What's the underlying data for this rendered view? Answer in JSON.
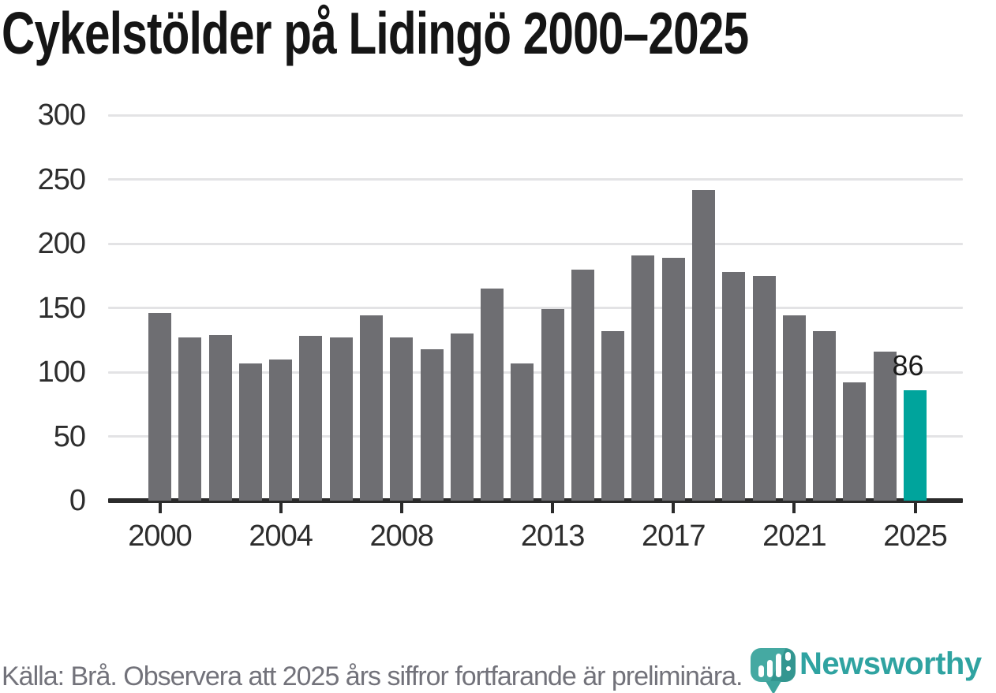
{
  "title": "Cykelstölder på Lidingö 2000–2025",
  "footer": {
    "source_text": "Källa: Brå. Observera att 2025 års siffror fortfarande är preliminära.",
    "brand": "Newsworthy"
  },
  "colors": {
    "bar": "#6e6e72",
    "highlight": "#00a49c",
    "gridline": "#e3e3e5",
    "axis": "#2b2b2b",
    "tick_label": "#2d2d2d",
    "title_text": "#151515",
    "footer_text": "#72727a",
    "annotation_text": "#1a1a1a",
    "logo_teal": "#3da49d",
    "logo_text": "#2fa3a1"
  },
  "chart_data": {
    "type": "bar",
    "title": "Cykelstölder på Lidingö 2000–2025",
    "xlabel": "",
    "ylabel": "",
    "categories": [
      2000,
      2001,
      2002,
      2003,
      2004,
      2005,
      2006,
      2007,
      2008,
      2009,
      2010,
      2011,
      2012,
      2013,
      2014,
      2015,
      2016,
      2017,
      2018,
      2019,
      2020,
      2021,
      2022,
      2023,
      2024,
      2025
    ],
    "values": [
      146,
      127,
      129,
      107,
      110,
      128,
      127,
      144,
      127,
      118,
      130,
      165,
      107,
      149,
      180,
      132,
      191,
      189,
      242,
      178,
      175,
      144,
      132,
      92,
      116,
      86
    ],
    "highlight_year": 2025,
    "annotation": {
      "year": 2025,
      "text": "86"
    },
    "y_ticks": [
      0,
      50,
      100,
      150,
      200,
      250,
      300
    ],
    "x_tick_years": [
      2000,
      2004,
      2008,
      2013,
      2017,
      2021,
      2025
    ],
    "ylim": [
      0,
      300
    ],
    "grid": "horizontal-only",
    "legend": "none"
  }
}
